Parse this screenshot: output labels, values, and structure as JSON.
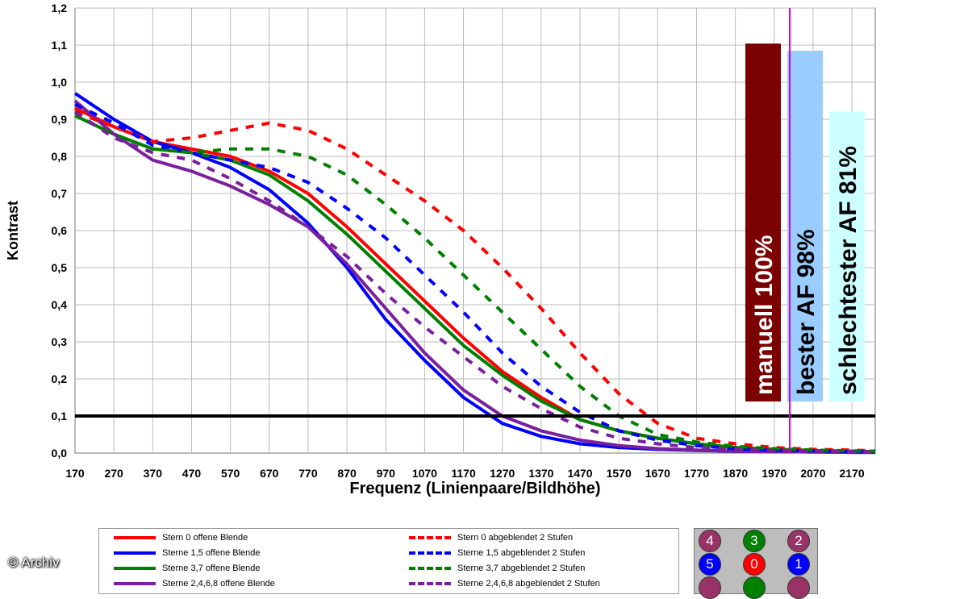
{
  "chart_data": {
    "type": "line",
    "xlabel": "Frequenz (Linienpaare/Bildhöhe)",
    "ylabel": "Kontrast",
    "xlim": [
      170,
      2230
    ],
    "ylim": [
      0,
      1.2
    ],
    "grid": true,
    "x_ticks": [
      "170",
      "270",
      "370",
      "470",
      "570",
      "670",
      "770",
      "870",
      "970",
      "1070",
      "1170",
      "1270",
      "1370",
      "1470",
      "1570",
      "1670",
      "1770",
      "1870",
      "1970",
      "2070",
      "2170"
    ],
    "y_ticks": [
      "0,0",
      "0,1",
      "0,2",
      "0,3",
      "0,4",
      "0,5",
      "0,6",
      "0,7",
      "0,8",
      "0,9",
      "1,0",
      "1,1",
      "1,2"
    ],
    "reference_line": {
      "y": 0.1,
      "color": "#000000"
    },
    "marker_line": {
      "x": 2010,
      "color": "#cc00cc"
    },
    "series": [
      {
        "name": "Stern 0 offene Blende",
        "color": "#ff0000",
        "dashed": false,
        "x": [
          170,
          270,
          370,
          470,
          570,
          670,
          770,
          870,
          970,
          1070,
          1170,
          1270,
          1370,
          1470,
          1570,
          1670,
          1770,
          1870,
          1970,
          2070,
          2170,
          2230
        ],
        "y": [
          0.93,
          0.88,
          0.84,
          0.82,
          0.8,
          0.76,
          0.7,
          0.61,
          0.51,
          0.41,
          0.31,
          0.22,
          0.15,
          0.09,
          0.06,
          0.04,
          0.025,
          0.015,
          0.01,
          0.007,
          0.005,
          0.004
        ]
      },
      {
        "name": "Sterne 1,5 offene Blende",
        "color": "#0000ff",
        "dashed": false,
        "x": [
          170,
          270,
          370,
          470,
          570,
          670,
          770,
          870,
          970,
          1070,
          1170,
          1270,
          1370,
          1470,
          1570,
          1670,
          1770,
          1870,
          1970,
          2070,
          2170,
          2230
        ],
        "y": [
          0.97,
          0.9,
          0.84,
          0.81,
          0.77,
          0.71,
          0.62,
          0.5,
          0.36,
          0.25,
          0.15,
          0.08,
          0.045,
          0.025,
          0.015,
          0.01,
          0.007,
          0.005,
          0.004,
          0.003,
          0.002,
          0.002
        ]
      },
      {
        "name": "Sterne 3,7 offene Blende",
        "color": "#008000",
        "dashed": false,
        "x": [
          170,
          270,
          370,
          470,
          570,
          670,
          770,
          870,
          970,
          1070,
          1170,
          1270,
          1370,
          1470,
          1570,
          1670,
          1770,
          1870,
          1970,
          2070,
          2170,
          2230
        ],
        "y": [
          0.91,
          0.86,
          0.82,
          0.81,
          0.79,
          0.75,
          0.68,
          0.59,
          0.49,
          0.39,
          0.29,
          0.21,
          0.14,
          0.09,
          0.06,
          0.04,
          0.025,
          0.015,
          0.01,
          0.007,
          0.005,
          0.004
        ]
      },
      {
        "name": "Sterne 2,4,6,8 offene Blende",
        "color": "#7a1f9e",
        "dashed": false,
        "x": [
          170,
          270,
          370,
          470,
          570,
          670,
          770,
          870,
          970,
          1070,
          1170,
          1270,
          1370,
          1470,
          1570,
          1670,
          1770,
          1870,
          1970,
          2070,
          2170,
          2230
        ],
        "y": [
          0.95,
          0.86,
          0.79,
          0.76,
          0.72,
          0.67,
          0.61,
          0.51,
          0.39,
          0.27,
          0.17,
          0.1,
          0.06,
          0.035,
          0.02,
          0.012,
          0.008,
          0.005,
          0.004,
          0.003,
          0.002,
          0.002
        ]
      },
      {
        "name": "Stern 0 abgeblendet 2 Stufen",
        "color": "#ff0000",
        "dashed": true,
        "x": [
          170,
          270,
          370,
          470,
          570,
          670,
          770,
          870,
          970,
          1070,
          1170,
          1270,
          1370,
          1470,
          1570,
          1670,
          1770,
          1870,
          1970,
          2070,
          2170,
          2230
        ],
        "y": [
          0.92,
          0.88,
          0.84,
          0.85,
          0.87,
          0.89,
          0.87,
          0.82,
          0.75,
          0.68,
          0.6,
          0.5,
          0.39,
          0.27,
          0.16,
          0.08,
          0.04,
          0.025,
          0.015,
          0.01,
          0.008,
          0.006
        ]
      },
      {
        "name": "Sterne 1,5 abgeblendet 2 Stufen",
        "color": "#0000ff",
        "dashed": true,
        "x": [
          170,
          270,
          370,
          470,
          570,
          670,
          770,
          870,
          970,
          1070,
          1170,
          1270,
          1370,
          1470,
          1570,
          1670,
          1770,
          1870,
          1970,
          2070,
          2170,
          2230
        ],
        "y": [
          0.94,
          0.89,
          0.83,
          0.81,
          0.79,
          0.77,
          0.73,
          0.66,
          0.58,
          0.48,
          0.38,
          0.27,
          0.18,
          0.11,
          0.06,
          0.035,
          0.02,
          0.012,
          0.008,
          0.006,
          0.004,
          0.003
        ]
      },
      {
        "name": "Sterne 3,7 abgeblendet 2 Stufen",
        "color": "#008000",
        "dashed": true,
        "x": [
          170,
          270,
          370,
          470,
          570,
          670,
          770,
          870,
          970,
          1070,
          1170,
          1270,
          1370,
          1470,
          1570,
          1670,
          1770,
          1870,
          1970,
          2070,
          2170,
          2230
        ],
        "y": [
          0.91,
          0.86,
          0.82,
          0.81,
          0.82,
          0.82,
          0.8,
          0.75,
          0.67,
          0.58,
          0.48,
          0.38,
          0.28,
          0.18,
          0.1,
          0.05,
          0.03,
          0.018,
          0.012,
          0.008,
          0.006,
          0.005
        ]
      },
      {
        "name": "Sterne 2,4,6,8 abgeblendet 2 Stufen",
        "color": "#7a1f9e",
        "dashed": true,
        "x": [
          170,
          270,
          370,
          470,
          570,
          670,
          770,
          870,
          970,
          1070,
          1170,
          1270,
          1370,
          1470,
          1570,
          1670,
          1770,
          1870,
          1970,
          2070,
          2170,
          2230
        ],
        "y": [
          0.92,
          0.85,
          0.81,
          0.79,
          0.74,
          0.68,
          0.61,
          0.53,
          0.43,
          0.34,
          0.26,
          0.18,
          0.12,
          0.07,
          0.04,
          0.025,
          0.015,
          0.01,
          0.007,
          0.005,
          0.004,
          0.003
        ]
      }
    ],
    "annotation_bars": [
      {
        "label": "manuell 100%",
        "fill": "#7b0000",
        "text_color": "#ffffff",
        "value_pct": 100
      },
      {
        "label": "bester AF 98%",
        "fill": "#99ccff",
        "text_color": "#000000",
        "value_pct": 98
      },
      {
        "label": "schlechtester AF 81%",
        "fill": "#ccffff",
        "text_color": "#000000",
        "value_pct": 81
      }
    ]
  },
  "stars": [
    {
      "label": "4",
      "color": "#993366"
    },
    {
      "label": "3",
      "color": "#008000"
    },
    {
      "label": "2",
      "color": "#993366"
    },
    {
      "label": "5",
      "color": "#0000ff"
    },
    {
      "label": "0",
      "color": "#ff0000"
    },
    {
      "label": "1",
      "color": "#0000ff"
    },
    {
      "label": "",
      "color": "#993366"
    },
    {
      "label": "",
      "color": "#008000"
    },
    {
      "label": "",
      "color": "#993366"
    }
  ],
  "credit": "© Archiv"
}
